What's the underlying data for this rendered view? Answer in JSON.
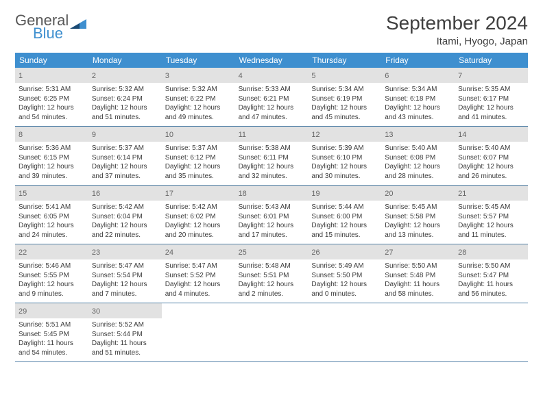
{
  "logo": {
    "text_top": "General",
    "text_bottom": "Blue"
  },
  "header": {
    "month_title": "September 2024",
    "location": "Itami, Hyogo, Japan"
  },
  "colors": {
    "header_bar": "#3e8fcf",
    "daynum_bg": "#e2e2e2",
    "week_border": "#4f7fa6",
    "logo_blue": "#3e8fcf",
    "logo_dark_triangle": "#1a4a73",
    "logo_grey": "#585858"
  },
  "weekdays": [
    "Sunday",
    "Monday",
    "Tuesday",
    "Wednesday",
    "Thursday",
    "Friday",
    "Saturday"
  ],
  "weeks": [
    [
      {
        "n": "1",
        "sr": "Sunrise: 5:31 AM",
        "ss": "Sunset: 6:25 PM",
        "d1": "Daylight: 12 hours",
        "d2": "and 54 minutes."
      },
      {
        "n": "2",
        "sr": "Sunrise: 5:32 AM",
        "ss": "Sunset: 6:24 PM",
        "d1": "Daylight: 12 hours",
        "d2": "and 51 minutes."
      },
      {
        "n": "3",
        "sr": "Sunrise: 5:32 AM",
        "ss": "Sunset: 6:22 PM",
        "d1": "Daylight: 12 hours",
        "d2": "and 49 minutes."
      },
      {
        "n": "4",
        "sr": "Sunrise: 5:33 AM",
        "ss": "Sunset: 6:21 PM",
        "d1": "Daylight: 12 hours",
        "d2": "and 47 minutes."
      },
      {
        "n": "5",
        "sr": "Sunrise: 5:34 AM",
        "ss": "Sunset: 6:19 PM",
        "d1": "Daylight: 12 hours",
        "d2": "and 45 minutes."
      },
      {
        "n": "6",
        "sr": "Sunrise: 5:34 AM",
        "ss": "Sunset: 6:18 PM",
        "d1": "Daylight: 12 hours",
        "d2": "and 43 minutes."
      },
      {
        "n": "7",
        "sr": "Sunrise: 5:35 AM",
        "ss": "Sunset: 6:17 PM",
        "d1": "Daylight: 12 hours",
        "d2": "and 41 minutes."
      }
    ],
    [
      {
        "n": "8",
        "sr": "Sunrise: 5:36 AM",
        "ss": "Sunset: 6:15 PM",
        "d1": "Daylight: 12 hours",
        "d2": "and 39 minutes."
      },
      {
        "n": "9",
        "sr": "Sunrise: 5:37 AM",
        "ss": "Sunset: 6:14 PM",
        "d1": "Daylight: 12 hours",
        "d2": "and 37 minutes."
      },
      {
        "n": "10",
        "sr": "Sunrise: 5:37 AM",
        "ss": "Sunset: 6:12 PM",
        "d1": "Daylight: 12 hours",
        "d2": "and 35 minutes."
      },
      {
        "n": "11",
        "sr": "Sunrise: 5:38 AM",
        "ss": "Sunset: 6:11 PM",
        "d1": "Daylight: 12 hours",
        "d2": "and 32 minutes."
      },
      {
        "n": "12",
        "sr": "Sunrise: 5:39 AM",
        "ss": "Sunset: 6:10 PM",
        "d1": "Daylight: 12 hours",
        "d2": "and 30 minutes."
      },
      {
        "n": "13",
        "sr": "Sunrise: 5:40 AM",
        "ss": "Sunset: 6:08 PM",
        "d1": "Daylight: 12 hours",
        "d2": "and 28 minutes."
      },
      {
        "n": "14",
        "sr": "Sunrise: 5:40 AM",
        "ss": "Sunset: 6:07 PM",
        "d1": "Daylight: 12 hours",
        "d2": "and 26 minutes."
      }
    ],
    [
      {
        "n": "15",
        "sr": "Sunrise: 5:41 AM",
        "ss": "Sunset: 6:05 PM",
        "d1": "Daylight: 12 hours",
        "d2": "and 24 minutes."
      },
      {
        "n": "16",
        "sr": "Sunrise: 5:42 AM",
        "ss": "Sunset: 6:04 PM",
        "d1": "Daylight: 12 hours",
        "d2": "and 22 minutes."
      },
      {
        "n": "17",
        "sr": "Sunrise: 5:42 AM",
        "ss": "Sunset: 6:02 PM",
        "d1": "Daylight: 12 hours",
        "d2": "and 20 minutes."
      },
      {
        "n": "18",
        "sr": "Sunrise: 5:43 AM",
        "ss": "Sunset: 6:01 PM",
        "d1": "Daylight: 12 hours",
        "d2": "and 17 minutes."
      },
      {
        "n": "19",
        "sr": "Sunrise: 5:44 AM",
        "ss": "Sunset: 6:00 PM",
        "d1": "Daylight: 12 hours",
        "d2": "and 15 minutes."
      },
      {
        "n": "20",
        "sr": "Sunrise: 5:45 AM",
        "ss": "Sunset: 5:58 PM",
        "d1": "Daylight: 12 hours",
        "d2": "and 13 minutes."
      },
      {
        "n": "21",
        "sr": "Sunrise: 5:45 AM",
        "ss": "Sunset: 5:57 PM",
        "d1": "Daylight: 12 hours",
        "d2": "and 11 minutes."
      }
    ],
    [
      {
        "n": "22",
        "sr": "Sunrise: 5:46 AM",
        "ss": "Sunset: 5:55 PM",
        "d1": "Daylight: 12 hours",
        "d2": "and 9 minutes."
      },
      {
        "n": "23",
        "sr": "Sunrise: 5:47 AM",
        "ss": "Sunset: 5:54 PM",
        "d1": "Daylight: 12 hours",
        "d2": "and 7 minutes."
      },
      {
        "n": "24",
        "sr": "Sunrise: 5:47 AM",
        "ss": "Sunset: 5:52 PM",
        "d1": "Daylight: 12 hours",
        "d2": "and 4 minutes."
      },
      {
        "n": "25",
        "sr": "Sunrise: 5:48 AM",
        "ss": "Sunset: 5:51 PM",
        "d1": "Daylight: 12 hours",
        "d2": "and 2 minutes."
      },
      {
        "n": "26",
        "sr": "Sunrise: 5:49 AM",
        "ss": "Sunset: 5:50 PM",
        "d1": "Daylight: 12 hours",
        "d2": "and 0 minutes."
      },
      {
        "n": "27",
        "sr": "Sunrise: 5:50 AM",
        "ss": "Sunset: 5:48 PM",
        "d1": "Daylight: 11 hours",
        "d2": "and 58 minutes."
      },
      {
        "n": "28",
        "sr": "Sunrise: 5:50 AM",
        "ss": "Sunset: 5:47 PM",
        "d1": "Daylight: 11 hours",
        "d2": "and 56 minutes."
      }
    ],
    [
      {
        "n": "29",
        "sr": "Sunrise: 5:51 AM",
        "ss": "Sunset: 5:45 PM",
        "d1": "Daylight: 11 hours",
        "d2": "and 54 minutes."
      },
      {
        "n": "30",
        "sr": "Sunrise: 5:52 AM",
        "ss": "Sunset: 5:44 PM",
        "d1": "Daylight: 11 hours",
        "d2": "and 51 minutes."
      },
      null,
      null,
      null,
      null,
      null
    ]
  ]
}
